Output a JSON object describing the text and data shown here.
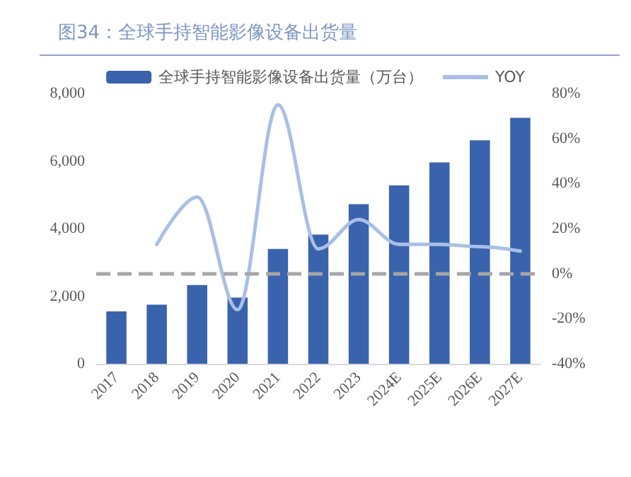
{
  "chart_data": {
    "type": "bar",
    "title": "图34：全球手持智能影像设备出货量",
    "categories": [
      "2017",
      "2018",
      "2019",
      "2020",
      "2021",
      "2022",
      "2023",
      "2024E",
      "2025E",
      "2026E",
      "2027E"
    ],
    "series": [
      {
        "name": "全球手持智能影像设备出货量（万台）",
        "color": "#3a63ad",
        "values": [
          1550,
          1750,
          2330,
          1960,
          3400,
          3820,
          4720,
          5280,
          5960,
          6610,
          7280
        ]
      },
      {
        "name": "YOY",
        "type": "line",
        "axis": "y2",
        "color": "#a9bfe6",
        "values": [
          null,
          13,
          34,
          -16,
          75,
          11,
          24,
          13,
          13,
          12,
          10
        ]
      }
    ],
    "ylim": [
      0,
      8000
    ],
    "yticks": [
      {
        "value": 0,
        "label": "0"
      },
      {
        "value": 2000,
        "label": "2,000"
      },
      {
        "value": 4000,
        "label": "4,000"
      },
      {
        "value": 6000,
        "label": "6,000"
      },
      {
        "value": 8000,
        "label": "8,000"
      }
    ],
    "y2lim": [
      -40,
      80
    ],
    "y2ticks": [
      {
        "value": -40,
        "label": "-40%"
      },
      {
        "value": -20,
        "label": "-20%"
      },
      {
        "value": 0,
        "label": "0%"
      },
      {
        "value": 20,
        "label": "20%"
      },
      {
        "value": 40,
        "label": "40%"
      },
      {
        "value": 60,
        "label": "60%"
      },
      {
        "value": 80,
        "label": "80%"
      }
    ],
    "ref_lines": [
      {
        "axis": "y2",
        "value": 0,
        "color": "#a6a6a6",
        "line_style": "dashed"
      }
    ],
    "grid": false,
    "legend": "top",
    "marker": "none",
    "line_style": "solid"
  }
}
